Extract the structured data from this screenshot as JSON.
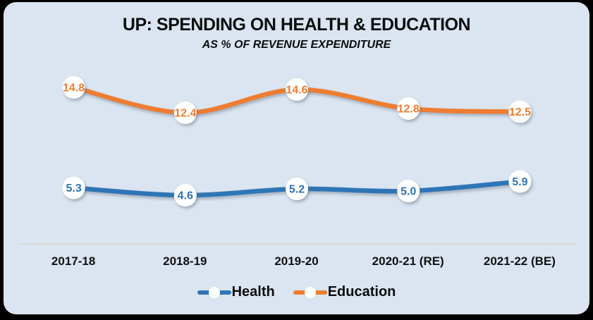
{
  "title": "UP: SPENDING ON HEALTH & EDUCATION",
  "subtitle": "AS % OF REVENUE EXPENDITURE",
  "colors": {
    "frame": "#000000",
    "panel_background": "#dbe5f1",
    "axis_line": "#d9d9d9",
    "text": "#0d0d0d",
    "health": "#2e75b6",
    "education": "#ed7d31",
    "marker_fill": "#ffffff"
  },
  "chart_data": {
    "type": "line",
    "title": "UP: SPENDING ON HEALTH & EDUCATION",
    "subtitle": "AS % OF REVENUE EXPENDITURE",
    "categories": [
      "2017-18",
      "2018-19",
      "2019-20",
      "2020-21 (RE)",
      "2021-22 (BE)"
    ],
    "series": [
      {
        "name": "Health",
        "color": "#2e75b6",
        "values": [
          5.3,
          4.6,
          5.2,
          5.0,
          5.9
        ]
      },
      {
        "name": "Education",
        "color": "#ed7d31",
        "values": [
          14.8,
          12.4,
          14.6,
          12.8,
          12.5
        ]
      }
    ],
    "ylim": [
      0,
      16.4
    ],
    "grid": false,
    "y_axis_visible": false,
    "data_labels": true,
    "data_label_decimals": 1,
    "smooth_lines": true,
    "marker": "circle-white",
    "legend_position": "bottom"
  },
  "legend": {
    "items": [
      {
        "label": "Health",
        "color": "#2e75b6"
      },
      {
        "label": "Education",
        "color": "#ed7d31"
      }
    ]
  }
}
